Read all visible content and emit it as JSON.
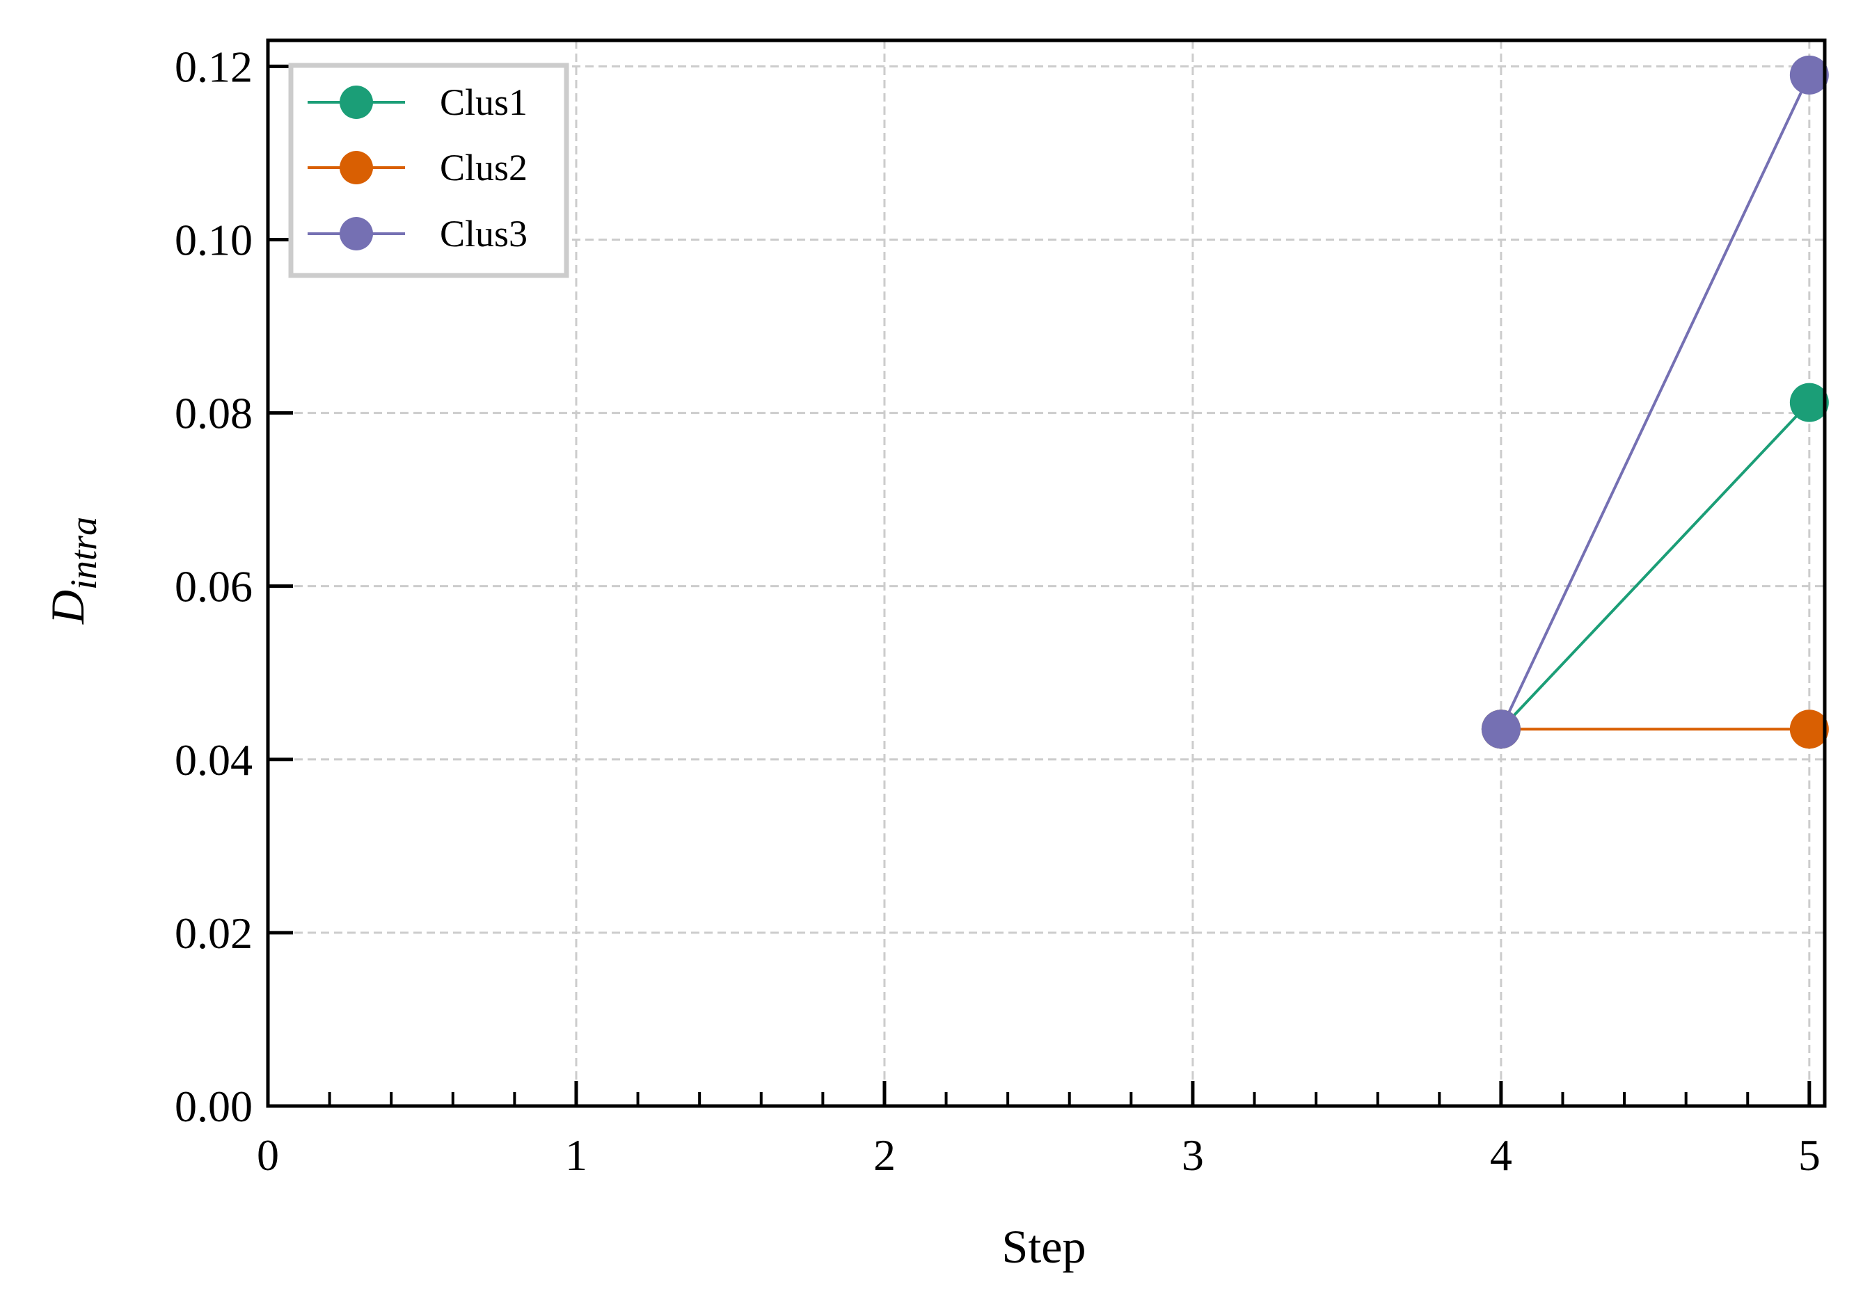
{
  "chart_data": {
    "type": "line",
    "xlabel": "Step",
    "ylabel_main": "D",
    "ylabel_sub": "intra",
    "xlim": [
      0,
      5.05
    ],
    "ylim": [
      0,
      0.123
    ],
    "x_ticks": [
      0,
      1,
      2,
      3,
      4,
      5
    ],
    "x_tick_labels": [
      "0",
      "1",
      "2",
      "3",
      "4",
      "5"
    ],
    "y_ticks": [
      0.0,
      0.02,
      0.04,
      0.06,
      0.08,
      0.1,
      0.12
    ],
    "y_tick_labels": [
      "0.00",
      "0.02",
      "0.04",
      "0.06",
      "0.08",
      "0.10",
      "0.12"
    ],
    "grid": true,
    "legend_position": "top-left",
    "series": [
      {
        "name": "Clus1",
        "color": "#1b9e77",
        "x": [
          4,
          5
        ],
        "y": [
          0.0435,
          0.0812
        ]
      },
      {
        "name": "Clus2",
        "color": "#d95f02",
        "x": [
          4,
          5
        ],
        "y": [
          0.0435,
          0.0435
        ]
      },
      {
        "name": "Clus3",
        "color": "#7570b3",
        "x": [
          4,
          5
        ],
        "y": [
          0.0435,
          0.119
        ]
      }
    ]
  }
}
